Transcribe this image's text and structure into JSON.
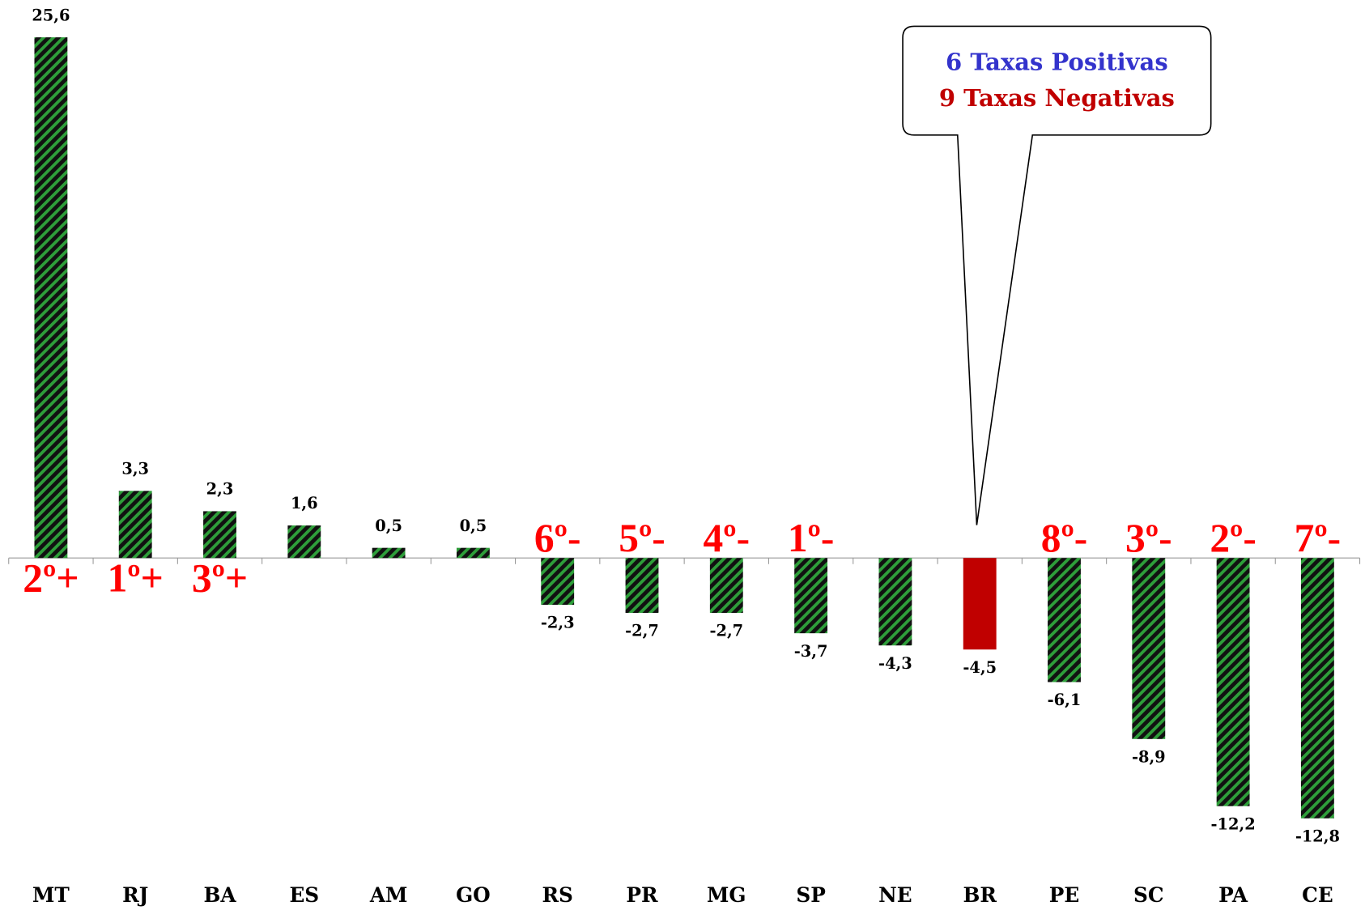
{
  "chart_data": {
    "type": "bar",
    "categories": [
      "MT",
      "RJ",
      "BA",
      "ES",
      "AM",
      "GO",
      "RS",
      "PR",
      "MG",
      "SP",
      "NE",
      "BR",
      "PE",
      "SC",
      "PA",
      "CE"
    ],
    "values": [
      25.6,
      3.3,
      2.3,
      1.6,
      0.5,
      0.5,
      -2.3,
      -2.7,
      -2.7,
      -3.7,
      -4.3,
      -4.5,
      -6.1,
      -8.9,
      -12.2,
      -12.8
    ],
    "value_labels": [
      "25,6",
      "3,3",
      "2,3",
      "1,6",
      "0,5",
      "0,5",
      "-2,3",
      "-2,7",
      "-2,7",
      "-3,7",
      "-4,3",
      "-4,5",
      "-6,1",
      "-8,9",
      "-12,2",
      "-12,8"
    ],
    "ranks": [
      "2º+",
      "1º+",
      "3º+",
      null,
      null,
      null,
      "6º-",
      "5º-",
      "4º-",
      "1º-",
      null,
      null,
      "8º-",
      "3º-",
      "2º-",
      "7º-"
    ],
    "color": "#2e9e3a",
    "highlight_index": 11,
    "highlight_color": "#c00000",
    "ylim": [
      -17,
      27
    ],
    "callout": {
      "positive": "6 Taxas Positivas",
      "negative": "9 Taxas Negativas",
      "positive_color": "#3333cc",
      "negative_color": "#c00000"
    }
  }
}
